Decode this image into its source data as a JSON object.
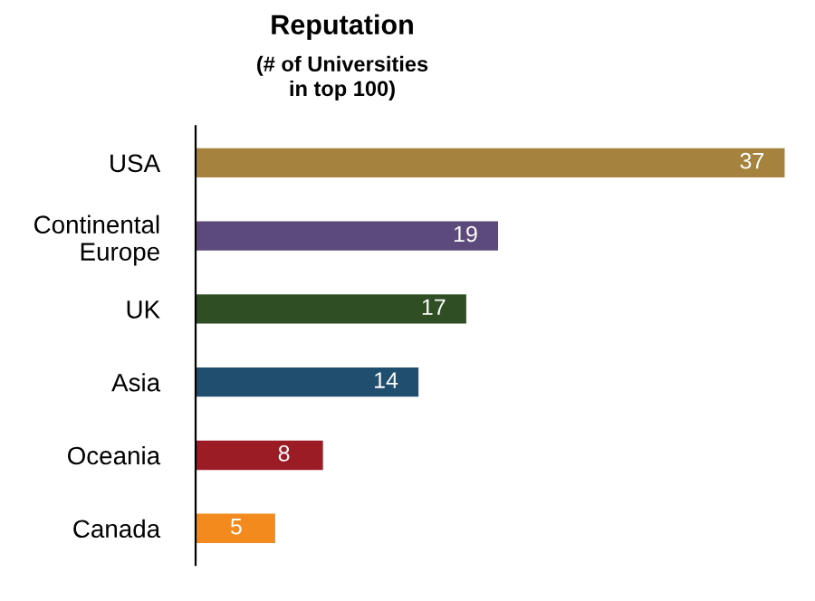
{
  "chart_data": {
    "type": "bar",
    "orientation": "horizontal",
    "title": "Reputation",
    "subtitle": "(# of Universities\nin top 100)",
    "categories": [
      "USA",
      "Continental\nEurope",
      "UK",
      "Asia",
      "Oceania",
      "Canada"
    ],
    "values": [
      37,
      19,
      17,
      14,
      8,
      5
    ],
    "colors": [
      "#a5833f",
      "#5d4a7c",
      "#2f4e24",
      "#1f4e6e",
      "#9c1c26",
      "#f28a1e"
    ],
    "data_labels": true,
    "grid": false,
    "legend": false
  }
}
